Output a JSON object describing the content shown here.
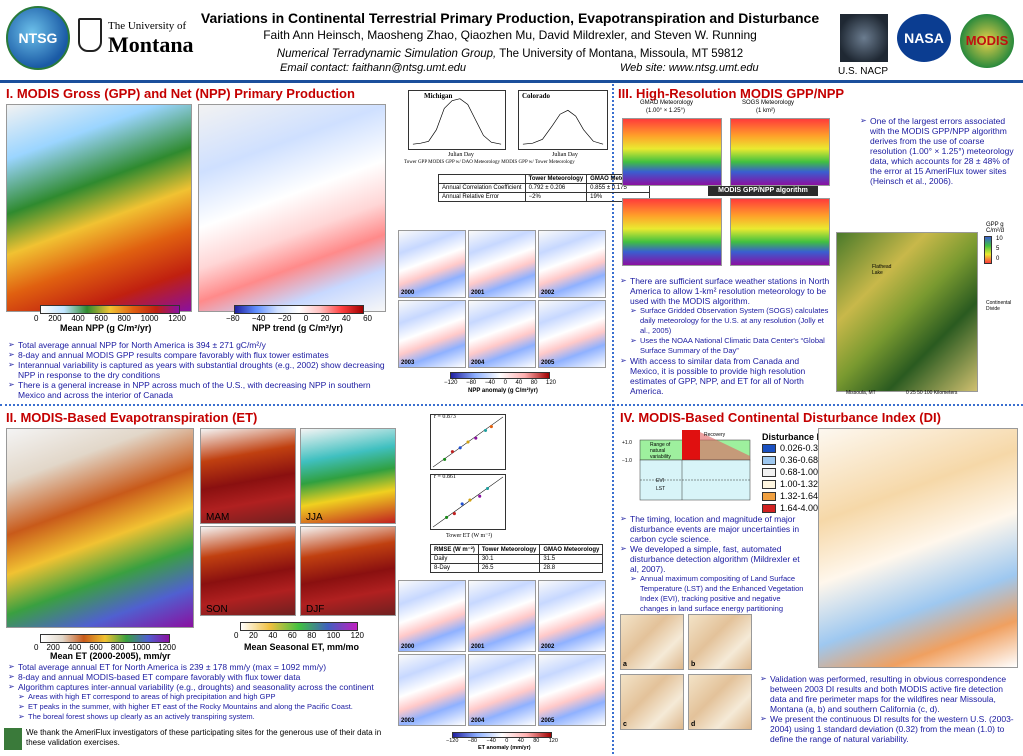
{
  "header": {
    "title": "Variations in Continental Terrestrial Primary Production, Evapotranspiration and Disturbance",
    "authors": "Faith Ann Heinsch, Maosheng Zhao, Qiaozhen Mu, David Mildrexler, and Steven W. Running",
    "group_italic": "Numerical Terradynamic Simulation Group,",
    "group_rest": " The University of Montana, Missoula, MT  59812",
    "contact": "Email  contact:  faithann@ntsg.umt.edu",
    "website": "Web site:  www.ntsg.umt.edu",
    "logo_ntsg": "NTSG",
    "logo_um_line1": "The University of",
    "logo_um_line2": "Montana",
    "logo_nasa": "NASA",
    "logo_modis": "MODIS",
    "nacp_label": "U.S. NACP"
  },
  "section1": {
    "title": "I. MODIS Gross (GPP) and Net (NPP) Primary Production",
    "npp_colorbar_ticks": [
      "0",
      "200",
      "400",
      "600",
      "800",
      "1000",
      "1200"
    ],
    "npp_colorbar_title": "Mean NPP (g C/m²/yr)",
    "trend_colorbar_ticks": [
      "−80",
      "−40",
      "−20",
      "0",
      "20",
      "40",
      "60"
    ],
    "trend_colorbar_title": "NPP trend (g C/m²/yr)",
    "bullets": [
      "Total average annual NPP for North America is 394 ± 271 gC/m²/y",
      "8-day and annual MODIS GPP results compare favorably with flux tower estimates",
      "Interannual variability is captured as years with substantial droughts (e.g., 2002) show decreasing NPP in response to the dry conditions",
      "There is a general increase in NPP across much of the U.S., with decreasing NPP in southern Mexico and across the interior of Canada"
    ],
    "chart_michigan": "Michigan",
    "chart_colorado": "Colorado",
    "chart_xlabel": "Julian Day",
    "chart_ylabel": "GPP (gC m⁻² d⁻¹)",
    "chart_legend": "Tower GPP    MODIS GPP w/ DAO Meteorology    MODIS GPP w/ Tower Meteorology",
    "table": {
      "headers": [
        "",
        "Tower Meteorology",
        "GMAO Meteorology"
      ],
      "rows": [
        [
          "Annual Correlation Coefficient",
          "0.792 ± 0.206",
          "0.855 ± 0.175"
        ],
        [
          "Annual Relative Error",
          "−2%",
          "19%"
        ]
      ]
    },
    "anomaly_years": [
      "2000",
      "2001",
      "2002",
      "2003",
      "2004",
      "2005"
    ],
    "anomaly_ticks": [
      "−120",
      "−80",
      "−40",
      "0",
      "40",
      "80",
      "120"
    ],
    "anomaly_title": "NPP anomaly (g C/m²/yr)"
  },
  "section2": {
    "title": "II. MODIS-Based Evapotranspiration (ET)",
    "season_labels": [
      "MAM",
      "JJA",
      "SON",
      "DJF"
    ],
    "et_colorbar_ticks": [
      "0",
      "200",
      "400",
      "600",
      "800",
      "1000",
      "1200"
    ],
    "et_colorbar_title": "Mean ET (2000-2005),  mm/yr",
    "season_colorbar_ticks": [
      "0",
      "20",
      "40",
      "60",
      "80",
      "100",
      "120"
    ],
    "season_colorbar_title": "Mean Seasonal ET, mm/mo",
    "bullets": [
      "Total average annual ET for North America is 239 ± 178 mm/y (max = 1092 mm/y)",
      "8-day and annual MODIS-based ET compare favorably with flux tower data",
      "Algorithm captures inter-annual variability (e.g., droughts) and seasonality across the continent"
    ],
    "sub_bullets": [
      "Areas with high ET correspond to areas of high precipitation and high GPP",
      "ET peaks in the summer, with higher ET east of the Rocky Mountains and along the Pacific Coast.",
      "The boreal forest shows up clearly as an actively transpiring system."
    ],
    "scatter_r1": "r = 0.873",
    "scatter_r2": "r = 0.861",
    "scatter_xlabel": "Tower ET (W m⁻²)",
    "scatter_ylabel": "MODIS-Based ET (W m⁻²)",
    "table": {
      "headers": [
        "RMSE (W m⁻²)",
        "Tower Meteorology",
        "GMAO Meteorology"
      ],
      "rows": [
        [
          "Daily",
          "30.1",
          "31.5"
        ],
        [
          "8-Day",
          "26.5",
          "28.8"
        ]
      ]
    },
    "anomaly_years": [
      "2000",
      "2001",
      "2002",
      "2003",
      "2004",
      "2005"
    ],
    "anomaly_ticks": [
      "−120",
      "−80",
      "−40",
      "0",
      "40",
      "80",
      "120"
    ],
    "anomaly_title": "ET anomaly (mm/yr)",
    "ack": "We thank the AmeriFlux investigators of these participating sites for the generous use of their data in these validation exercises."
  },
  "section3": {
    "title": "III. High-Resolution MODIS GPP/NPP",
    "gmao_label": "GMAO Meteorology",
    "gmao_res": "(1.00° × 1.25°)",
    "sogs_label": "SOGS Meteorology",
    "sogs_res": "(1 km²)",
    "algo_label": "MODIS GPP/NPP algorithm",
    "gpp_unit": "GPP g C/m²/d",
    "gpp_ticks": [
      "10",
      "5",
      "0"
    ],
    "flathead_label": "Flathead Lake",
    "divide_label": "Continental Divide",
    "missoula_label": "Missoula, MT",
    "scale_label": "0    25    50          100 Kilometers",
    "bullets_right": [
      "One of the largest errors associated with the MODIS GPP/NPP algorithm derives from the use of coarse resolution (1.00° × 1.25°) meteorology data, which accounts for 28 ± 48% of the error at 15 AmeriFlux tower sites (Heinsch et al., 2006)."
    ],
    "bullets_lower": [
      "There are sufficient surface weather stations in North America to allow 1-km² resolution meteorology to be used with the MODIS algorithm.",
      "With access to similar data from Canada and Mexico, it is possible to provide high resolution estimates of GPP, NPP, and ET for all of North America."
    ],
    "sub_bullets": [
      "Surface Gridded Observation System (SOGS) calculates daily meteorology for the U.S. at any resolution (Jolly et al., 2005)",
      "Uses the NOAA National Climatic Data Center's “Global Surface Summary of the Day”"
    ]
  },
  "section4": {
    "title": "IV. MODIS-Based Continental Disturbance Index (DI)",
    "di_legend_title": "Disturbance Index",
    "di_legend": [
      {
        "label": "0.026-0.36",
        "color": "#1a50c0"
      },
      {
        "label": "0.36-0.68",
        "color": "#9ec8f0"
      },
      {
        "label": "0.68-1.00",
        "color": "#f2f2f2"
      },
      {
        "label": "1.00-1.32",
        "color": "#fff6e0"
      },
      {
        "label": "1.32-1.64",
        "color": "#f0a040"
      },
      {
        "label": "1.64-4.00",
        "color": "#d02020"
      }
    ],
    "diagram_labels": [
      "Range of natural variability",
      "Recovery",
      "+1.0",
      "−1.0",
      "EVI",
      "LST",
      "EVI",
      "EVIₐ"
    ],
    "bullets": [
      "The timing, location and magnitude of major disturbance events are major uncertainties in carbon cycle science.",
      "We developed a simple, fast, automated disturbance detection algorithm (Mildrexler et al, 2007)."
    ],
    "sub_bullet": "Annual maximum compositing of Land Surface Temperature (LST) and the Enhanced Vegetation Index (EVI), tracking positive and negative changes in land surface energy partitioning",
    "bullets_bottom": [
      "Validation was performed, resulting in obvious correspondence between 2003 DI results and both MODIS active fire detection data and fire perimeter maps for the wildfires near Missoula, Montana (a, b) and southern California (c, d).",
      "We present the continuous DI results for the western U.S. (2003-2004) using 1 standard deviation (0.32) from the mean (1.0) to define the range of natural variability."
    ],
    "fire_labels": [
      "a",
      "b",
      "c",
      "d"
    ]
  },
  "colors": {
    "section_title": "#c40000",
    "bullet_text": "#1a1aa0",
    "divider": "#3a6fcf",
    "header_rule": "#1b4f9c"
  }
}
